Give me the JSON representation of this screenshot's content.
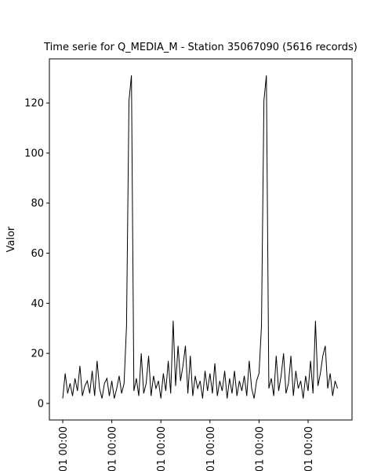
{
  "chart_data": {
    "type": "line",
    "title": "Time serie for Q_MEDIA_M - Station 35067090 (5616 records)",
    "y_label": "Valor",
    "x": [
      0,
      50,
      100,
      150,
      200,
      250,
      300,
      350,
      400,
      450,
      500,
      550,
      600,
      650,
      700,
      750,
      800,
      850,
      900,
      950,
      1000,
      1050,
      1100,
      1150,
      1200,
      1250,
      1300,
      1350,
      1400,
      1450,
      1500,
      1550,
      1600,
      1650,
      1700,
      1750,
      1800,
      1850,
      1900,
      1950,
      2000,
      2050,
      2100,
      2150,
      2200,
      2250,
      2300,
      2350,
      2400,
      2450,
      2500,
      2550,
      2600,
      2650,
      2700,
      2750,
      2800,
      2850,
      2900,
      2950,
      3000,
      3050,
      3100,
      3150,
      3200,
      3250,
      3300,
      3350,
      3400,
      3450,
      3500,
      3550,
      3600,
      3650,
      3700,
      3750,
      3800,
      3850,
      3900,
      3950,
      4000,
      4050,
      4100,
      4150,
      4200,
      4250,
      4300,
      4350,
      4400,
      4450,
      4500,
      4550,
      4600,
      4650,
      4700,
      4750,
      4800,
      4850,
      4900,
      4950,
      5000,
      5050,
      5100,
      5150,
      5200,
      5250,
      5300,
      5350,
      5400,
      5450,
      5500,
      5550,
      5600
    ],
    "series": [
      {
        "name": "Q_MEDIA_M",
        "color": "#000000",
        "values": [
          2,
          12,
          4,
          8,
          3,
          10,
          5,
          15,
          3,
          7,
          9,
          4,
          13,
          3,
          17,
          6,
          2,
          8,
          10,
          3,
          9,
          2,
          6,
          11,
          4,
          8,
          31,
          121,
          131,
          5,
          10,
          3,
          20,
          4,
          8,
          19,
          3,
          11,
          6,
          9,
          2,
          12,
          5,
          17,
          4,
          33,
          7,
          23,
          9,
          15,
          23,
          4,
          19,
          3,
          11,
          6,
          9,
          2,
          13,
          5,
          12,
          4,
          16,
          3,
          9,
          5,
          13,
          2,
          10,
          4,
          13,
          3,
          9,
          5,
          11,
          3,
          17,
          6,
          2,
          9,
          12,
          31,
          121,
          131,
          6,
          10,
          3,
          19,
          5,
          11,
          20,
          4,
          8,
          19,
          3,
          13,
          6,
          9,
          2,
          11,
          5,
          17,
          4,
          33,
          7,
          12,
          19,
          23,
          6,
          12,
          3,
          9,
          6
        ]
      }
    ],
    "xlim": [
      -272,
      5895
    ],
    "xticks": [
      {
        "value": 0,
        "label": "01 00:00"
      },
      {
        "value": 1000,
        "label": "01 00:00"
      },
      {
        "value": 2000,
        "label": "01 00:00"
      },
      {
        "value": 3000,
        "label": "01 00:00"
      },
      {
        "value": 4000,
        "label": "01 00:00"
      },
      {
        "value": 5000,
        "label": "01 00:00"
      }
    ],
    "ylim": [
      -6.6,
      137.6
    ],
    "yticks": [
      0,
      20,
      40,
      60,
      80,
      100,
      120
    ]
  }
}
